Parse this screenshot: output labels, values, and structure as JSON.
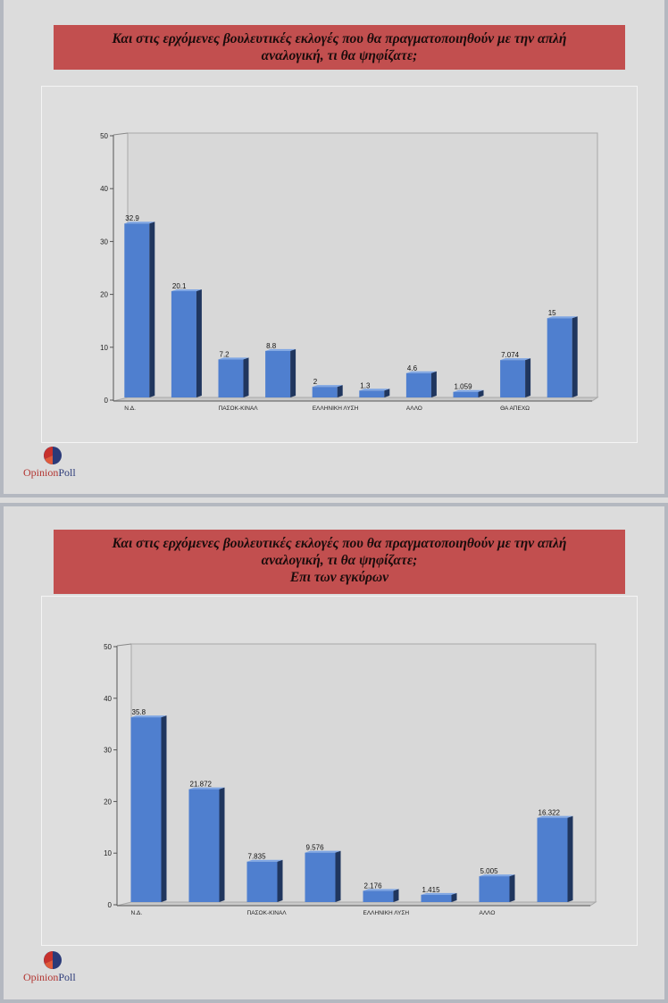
{
  "colors": {
    "bar": "#4f7fcf",
    "bar_dark": "#20365e",
    "bar_top": "#7fa6e4",
    "banner": "#c24f4f"
  },
  "logo": {
    "part1": "Opinion",
    "part2": "Poll"
  },
  "slides": [
    {
      "title_lines": [
        "Και στις ερχόμενες βουλευτικές εκλογές που θα πραγματοποιηθούν με την απλή",
        "αναλογική, τι θα ψηφίζατε;"
      ]
    },
    {
      "title_lines": [
        "Και στις ερχόμενες βουλευτικές εκλογές που θα πραγματοποιηθούν με την απλή",
        "αναλογική, τι θα ψηφίζατε;",
        "Επι των εγκύρων"
      ]
    }
  ],
  "chart_data": [
    {
      "type": "bar",
      "title": "",
      "xlabel": "",
      "ylabel": "",
      "ylim": [
        0,
        50
      ],
      "yticks": [
        0,
        10,
        20,
        30,
        40,
        50
      ],
      "categories": [
        "Ν.Δ.",
        "",
        "ΠΑΣΟΚ-ΚΙΝΑΛ",
        "",
        "ΕΛΛΗΝΙΚΗ ΛΥΣΗ",
        "",
        "ΑΛΛΟ",
        "",
        "ΘΑ ΑΠΕΧΩ",
        ""
      ],
      "values": [
        32.9,
        20.1,
        7.2,
        8.8,
        2,
        1.3,
        4.6,
        1.059,
        7.074,
        15
      ],
      "value_labels": [
        "32.9",
        "20.1",
        "7.2",
        "8.8",
        "2",
        "1.3",
        "4.6",
        "1.059",
        "7.074",
        "15"
      ],
      "grid": false,
      "legend": "none"
    },
    {
      "type": "bar",
      "title": "",
      "xlabel": "",
      "ylabel": "",
      "ylim": [
        0,
        50
      ],
      "yticks": [
        0,
        10,
        20,
        30,
        40,
        50
      ],
      "categories": [
        "Ν.Δ.",
        "",
        "ΠΑΣΟΚ-ΚΙΝΑΛ",
        "",
        "ΕΛΛΗΝΙΚΗ ΛΥΣΗ",
        "",
        "ΑΛΛΟ",
        ""
      ],
      "values": [
        35.8,
        21.872,
        7.835,
        9.576,
        2.176,
        1.415,
        5.005,
        16.322
      ],
      "value_labels": [
        "35.8",
        "21.872",
        "7.835",
        "9.576",
        "2.176",
        "1.415",
        "5.005",
        "16.322"
      ],
      "grid": false,
      "legend": "none"
    }
  ]
}
